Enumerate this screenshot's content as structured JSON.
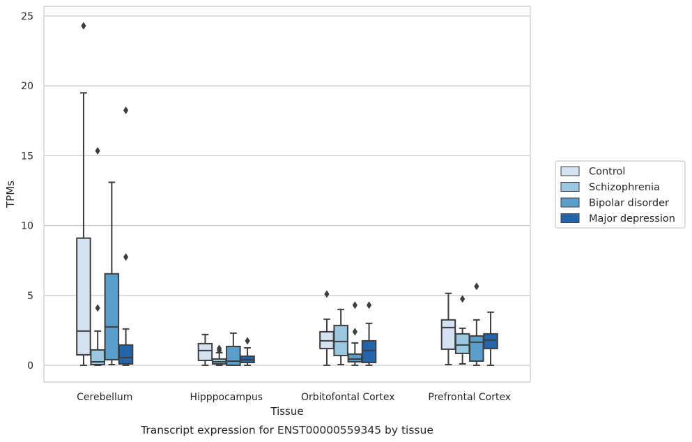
{
  "caption": "Transcript expression for ENST00000559345 by tissue",
  "chart_data": {
    "type": "boxplot",
    "title": "",
    "xlabel": "Tissue",
    "ylabel": "TPMs",
    "ylim": [
      -1.2,
      25.7
    ],
    "yticks": [
      0,
      5,
      10,
      15,
      20,
      25
    ],
    "grid": "horizontal",
    "legend_position": "right",
    "categories": [
      "Cerebellum",
      "Hipppocampus",
      "Orbitofontal Cortex",
      "Prefrontal Cortex"
    ],
    "series": [
      {
        "name": "Control",
        "color": "#d4e2f2",
        "boxes": [
          {
            "whisker_low": 0,
            "q1": 0.75,
            "median": 2.45,
            "q3": 9.1,
            "whisker_high": 19.5,
            "outliers": [
              24.3
            ]
          },
          {
            "whisker_low": 0,
            "q1": 0.35,
            "median": 1.05,
            "q3": 1.55,
            "whisker_high": 2.2,
            "outliers": []
          },
          {
            "whisker_low": 0,
            "q1": 1.2,
            "median": 1.75,
            "q3": 2.4,
            "whisker_high": 3.3,
            "outliers": [
              5.1
            ]
          },
          {
            "whisker_low": 0.05,
            "q1": 1.15,
            "median": 2.7,
            "q3": 3.25,
            "whisker_high": 5.15,
            "outliers": []
          }
        ]
      },
      {
        "name": "Schizophrenia",
        "color": "#9ac8e0",
        "boxes": [
          {
            "whisker_low": 0,
            "q1": 0.05,
            "median": 0.25,
            "q3": 1.1,
            "whisker_high": 2.45,
            "outliers": [
              4.1,
              15.35
            ]
          },
          {
            "whisker_low": 0,
            "q1": 0.1,
            "median": 0.25,
            "q3": 0.45,
            "whisker_high": 0.9,
            "outliers": [
              1.05,
              1.2
            ]
          },
          {
            "whisker_low": 0.05,
            "q1": 0.7,
            "median": 1.7,
            "q3": 2.85,
            "whisker_high": 4.0,
            "outliers": []
          },
          {
            "whisker_low": 0.1,
            "q1": 0.85,
            "median": 1.45,
            "q3": 2.25,
            "whisker_high": 2.65,
            "outliers": [
              4.75
            ]
          }
        ]
      },
      {
        "name": "Bipolar disorder",
        "color": "#5a9ecc",
        "boxes": [
          {
            "whisker_low": 0.05,
            "q1": 0.4,
            "median": 2.75,
            "q3": 6.55,
            "whisker_high": 13.1,
            "outliers": []
          },
          {
            "whisker_low": 0,
            "q1": 0,
            "median": 0.3,
            "q3": 1.35,
            "whisker_high": 2.3,
            "outliers": []
          },
          {
            "whisker_low": 0,
            "q1": 0.25,
            "median": 0.45,
            "q3": 0.8,
            "whisker_high": 1.6,
            "outliers": [
              2.4,
              4.3
            ]
          },
          {
            "whisker_low": 0,
            "q1": 0.3,
            "median": 1.65,
            "q3": 2.1,
            "whisker_high": 3.25,
            "outliers": [
              5.65
            ]
          }
        ]
      },
      {
        "name": "Major depression",
        "color": "#2364aa",
        "boxes": [
          {
            "whisker_low": 0,
            "q1": 0.1,
            "median": 0.55,
            "q3": 1.45,
            "whisker_high": 2.6,
            "outliers": [
              7.75,
              18.25
            ]
          },
          {
            "whisker_low": 0,
            "q1": 0.2,
            "median": 0.4,
            "q3": 0.65,
            "whisker_high": 1.25,
            "outliers": [
              1.75
            ]
          },
          {
            "whisker_low": 0,
            "q1": 0.2,
            "median": 1.05,
            "q3": 1.75,
            "whisker_high": 3.0,
            "outliers": [
              4.3
            ]
          },
          {
            "whisker_low": 0,
            "q1": 1.2,
            "median": 1.8,
            "q3": 2.25,
            "whisker_high": 3.8,
            "outliers": []
          }
        ]
      }
    ]
  }
}
